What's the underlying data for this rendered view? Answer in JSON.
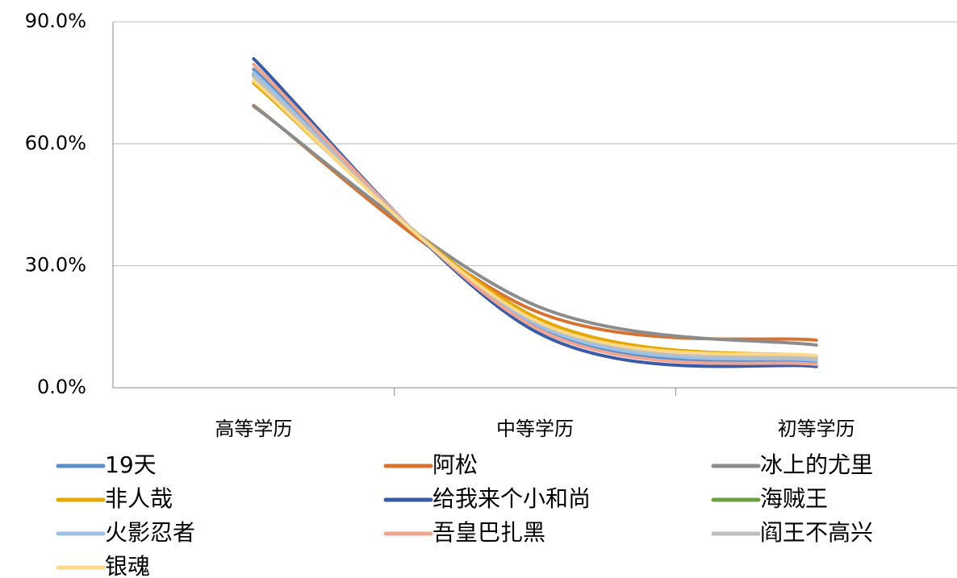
{
  "chart_data": {
    "type": "line",
    "smooth": true,
    "categories": [
      "高等学历",
      "中等学历",
      "初等学历"
    ],
    "ylim": [
      0,
      90
    ],
    "yticks": [
      {
        "value": 0,
        "label": "0.0%"
      },
      {
        "value": 30,
        "label": "30.0%"
      },
      {
        "value": 60,
        "label": "60.0%"
      },
      {
        "value": 90,
        "label": "90.0%"
      }
    ],
    "grid": true,
    "legend": "bottom",
    "series": [
      {
        "name": "19天",
        "color": "#5b8fc9",
        "values": [
          78.3,
          15.2,
          6.5
        ]
      },
      {
        "name": "阿松",
        "color": "#d9722e",
        "values": [
          69.4,
          18.9,
          11.7
        ]
      },
      {
        "name": "冰上的尤里",
        "color": "#8c8c8c",
        "values": [
          69.2,
          20.3,
          10.5
        ]
      },
      {
        "name": "非人哉",
        "color": "#e6a800",
        "values": [
          74.9,
          17.4,
          7.7
        ]
      },
      {
        "name": "给我来个小和尚",
        "color": "#3a5ca8",
        "values": [
          80.9,
          13.9,
          5.2
        ]
      },
      {
        "name": "海贼王",
        "color": "#6aa040",
        "values": [
          77,
          16,
          7
        ]
      },
      {
        "name": "火影忍者",
        "color": "#9cc0e6",
        "values": [
          77.5,
          15.8,
          6.7
        ]
      },
      {
        "name": "吾皇巴扎黑",
        "color": "#f0a591",
        "values": [
          79.5,
          14.8,
          5.7
        ]
      },
      {
        "name": "阎王不高兴",
        "color": "#bfbfbf",
        "values": [
          76.5,
          16.4,
          7.1
        ]
      },
      {
        "name": "银魂",
        "color": "#fcd88a",
        "values": [
          75.5,
          16.6,
          7.9
        ]
      }
    ]
  }
}
